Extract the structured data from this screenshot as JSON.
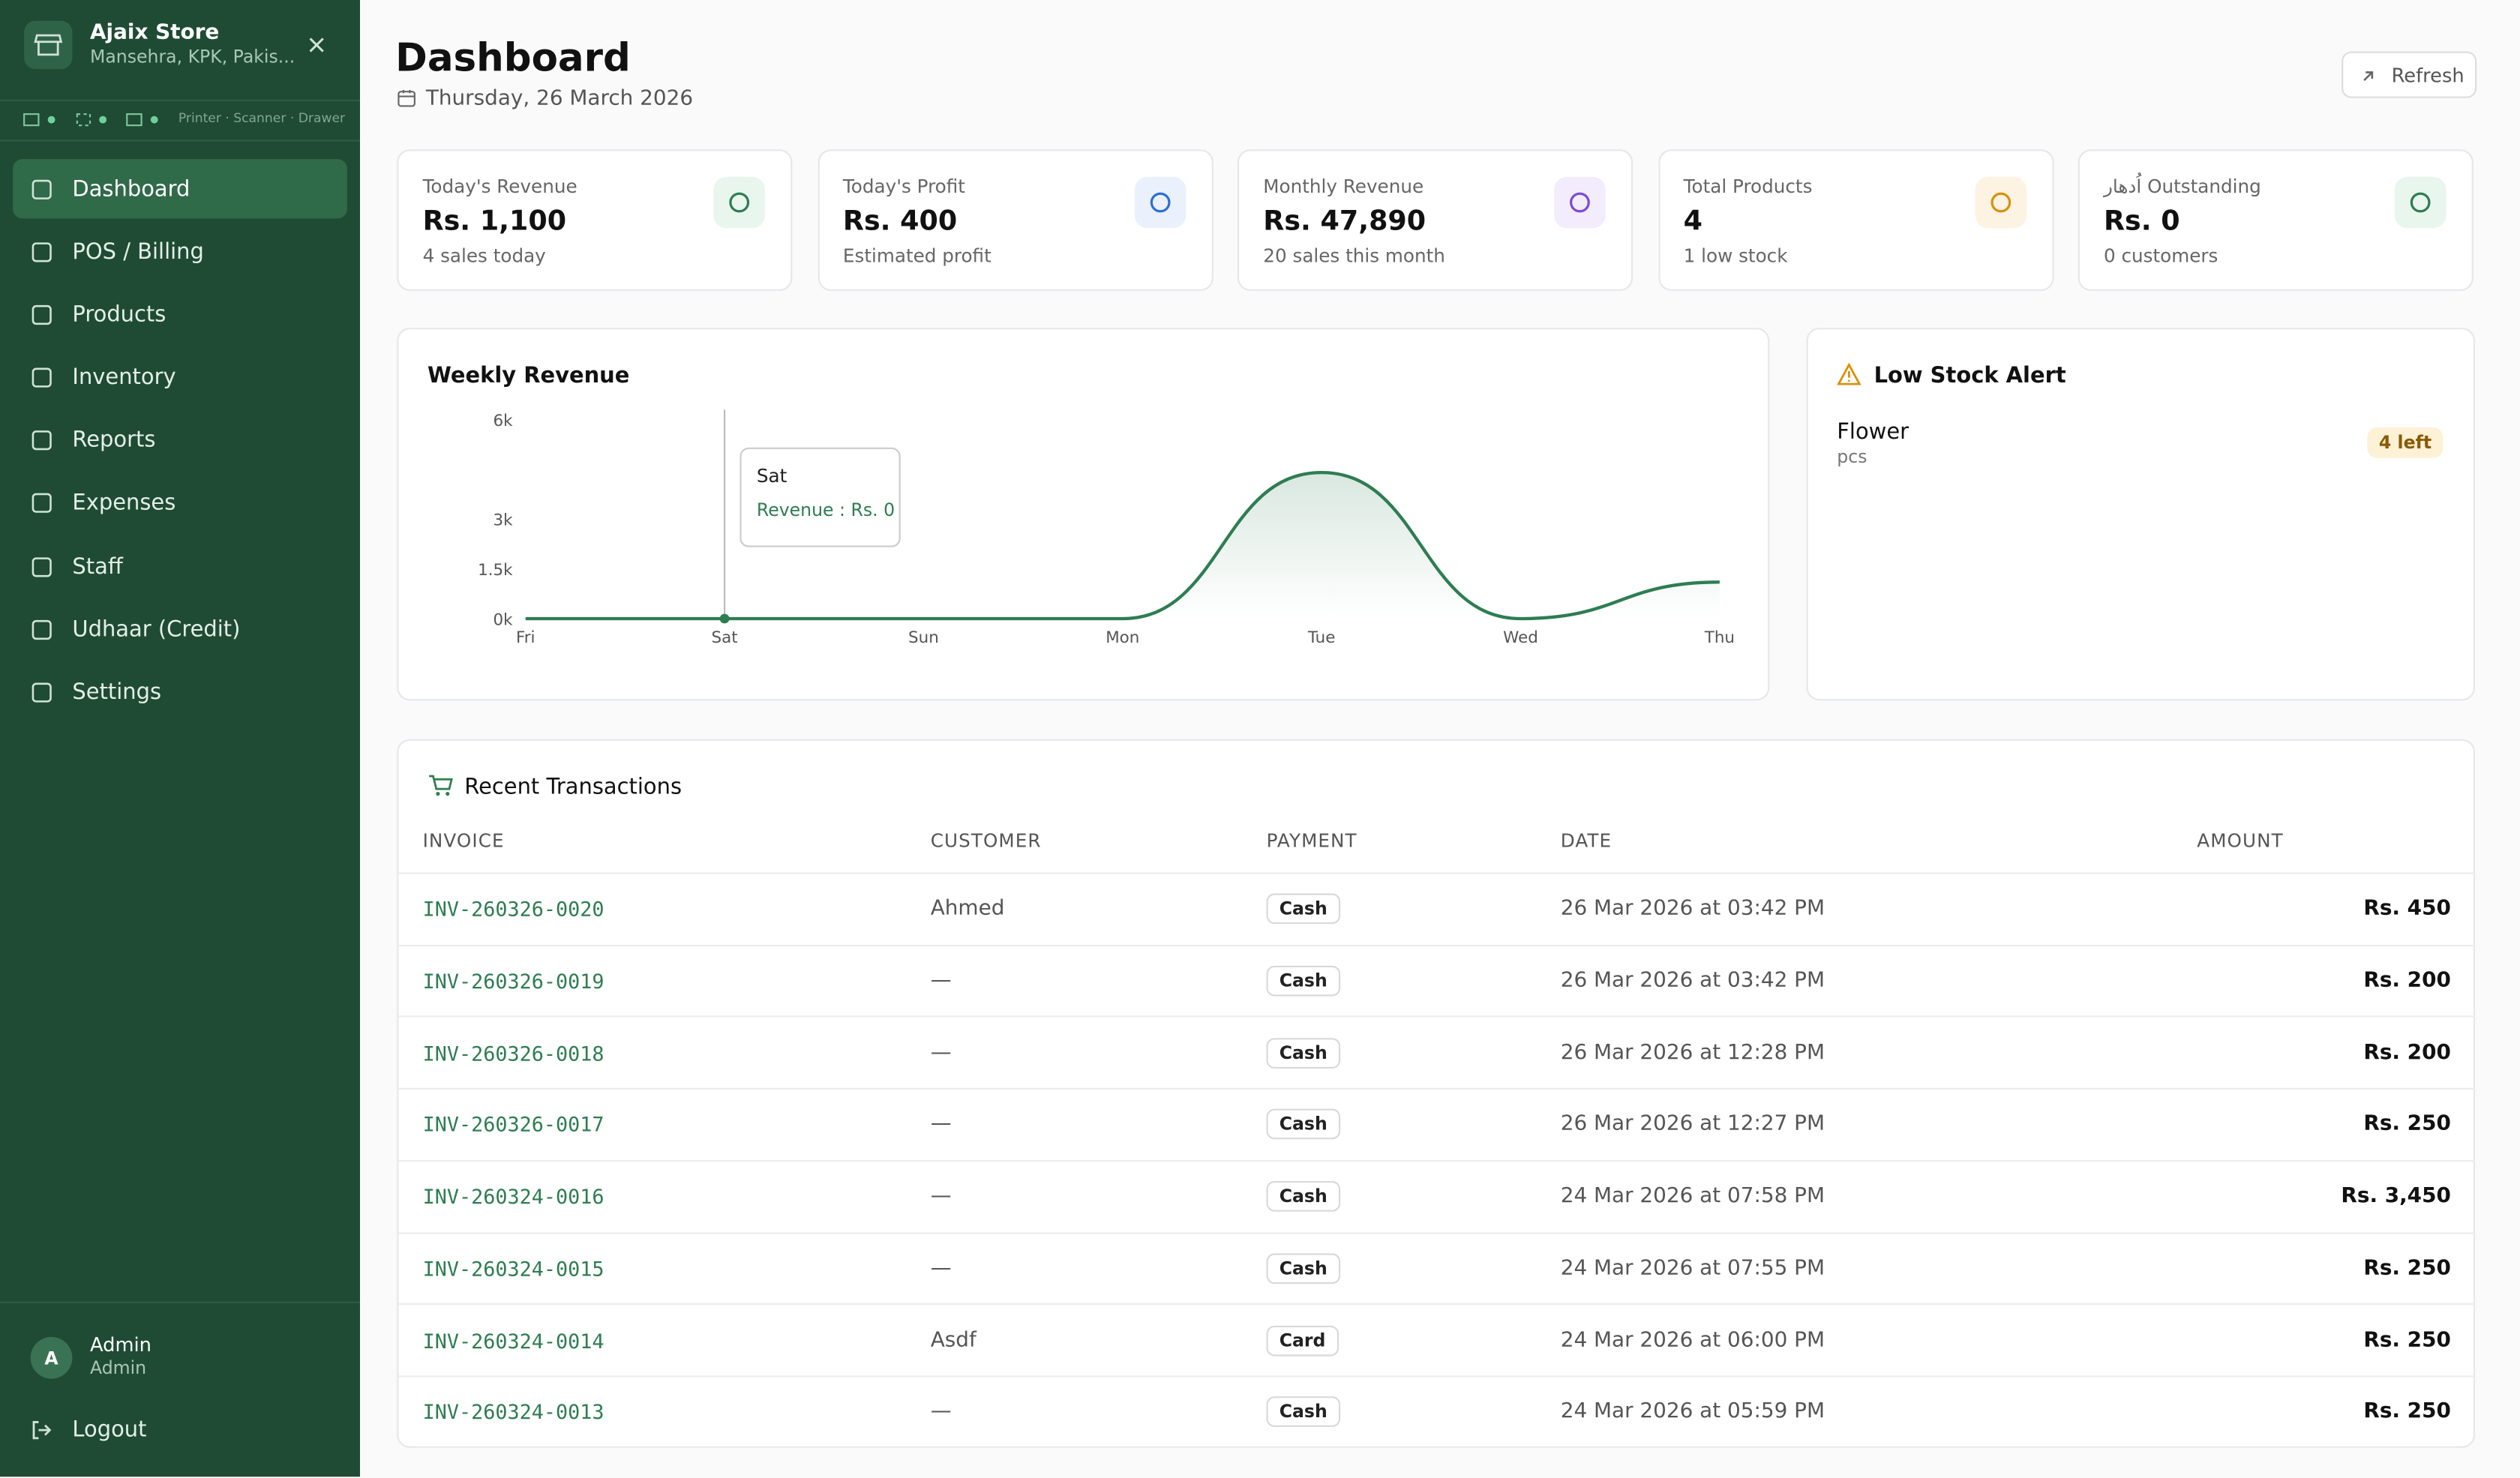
{
  "sidebar": {
    "store_name": "Ajaix Store",
    "store_location": "Mansehra, KPK, Pakis...",
    "devices": "Printer · Scanner · Drawer",
    "nav": [
      "Dashboard",
      "POS / Billing",
      "Products",
      "Inventory",
      "Reports",
      "Expenses",
      "Staff",
      "Udhaar (Credit)",
      "Settings"
    ],
    "user": {
      "initial": "A",
      "name": "Admin",
      "role": "Admin"
    },
    "logout": "Logout"
  },
  "header": {
    "title": "Dashboard",
    "date": "Thursday, 26 March 2026",
    "refresh": "Refresh"
  },
  "stats": [
    {
      "label": "Today's Revenue",
      "value": "Rs. 1,100",
      "note": "4 sales today"
    },
    {
      "label": "Today's Profit",
      "value": "Rs. 400",
      "note": "Estimated profit"
    },
    {
      "label": "Monthly Revenue",
      "value": "Rs. 47,890",
      "note": "20 sales this month"
    },
    {
      "label": "Total Products",
      "value": "4",
      "note": "1 low stock"
    },
    {
      "label": "اُدھار Outstanding",
      "value": "Rs. 0",
      "note": "0 customers"
    }
  ],
  "weekly_revenue": {
    "type": "line",
    "title": "Weekly Revenue",
    "categories": [
      "Fri",
      "Sat",
      "Sun",
      "Mon",
      "Tue",
      "Wed",
      "Thu"
    ],
    "values": [
      0,
      0,
      0,
      0,
      4400,
      0,
      1100
    ],
    "color": "#2e7d52",
    "ylim": [
      0,
      6000
    ],
    "yticks": [
      {
        "value": 0,
        "label": "0k"
      },
      {
        "value": 1500,
        "label": "1.5k"
      },
      {
        "value": 3000,
        "label": "3k"
      },
      {
        "value": 6000,
        "label": "6k"
      }
    ],
    "tooltip": {
      "title": "Sat",
      "text": "Revenue : Rs. 0"
    }
  },
  "low_stock": {
    "title": "Low Stock Alert",
    "items": [
      {
        "name": "Flower",
        "unit": "pcs",
        "badge": "4 left"
      }
    ]
  },
  "transactions": {
    "title": "Recent Transactions",
    "columns": [
      "INVOICE",
      "CUSTOMER",
      "PAYMENT",
      "DATE",
      "AMOUNT"
    ],
    "rows": [
      [
        "INV-260326-0020",
        "Ahmed",
        "Cash",
        "26 Mar 2026 at 03:42 PM",
        "Rs. 450"
      ],
      [
        "INV-260326-0019",
        "—",
        "Cash",
        "26 Mar 2026 at 03:42 PM",
        "Rs. 200"
      ],
      [
        "INV-260326-0018",
        "—",
        "Cash",
        "26 Mar 2026 at 12:28 PM",
        "Rs. 200"
      ],
      [
        "INV-260326-0017",
        "—",
        "Cash",
        "26 Mar 2026 at 12:27 PM",
        "Rs. 250"
      ],
      [
        "INV-260324-0016",
        "—",
        "Cash",
        "24 Mar 2026 at 07:58 PM",
        "Rs. 3,450"
      ],
      [
        "INV-260324-0015",
        "—",
        "Cash",
        "24 Mar 2026 at 07:55 PM",
        "Rs. 250"
      ],
      [
        "INV-260324-0014",
        "Asdf",
        "Card",
        "24 Mar 2026 at 06:00 PM",
        "Rs. 250"
      ],
      [
        "INV-260324-0013",
        "—",
        "Cash",
        "24 Mar 2026 at 05:59 PM",
        "Rs. 250"
      ]
    ]
  }
}
